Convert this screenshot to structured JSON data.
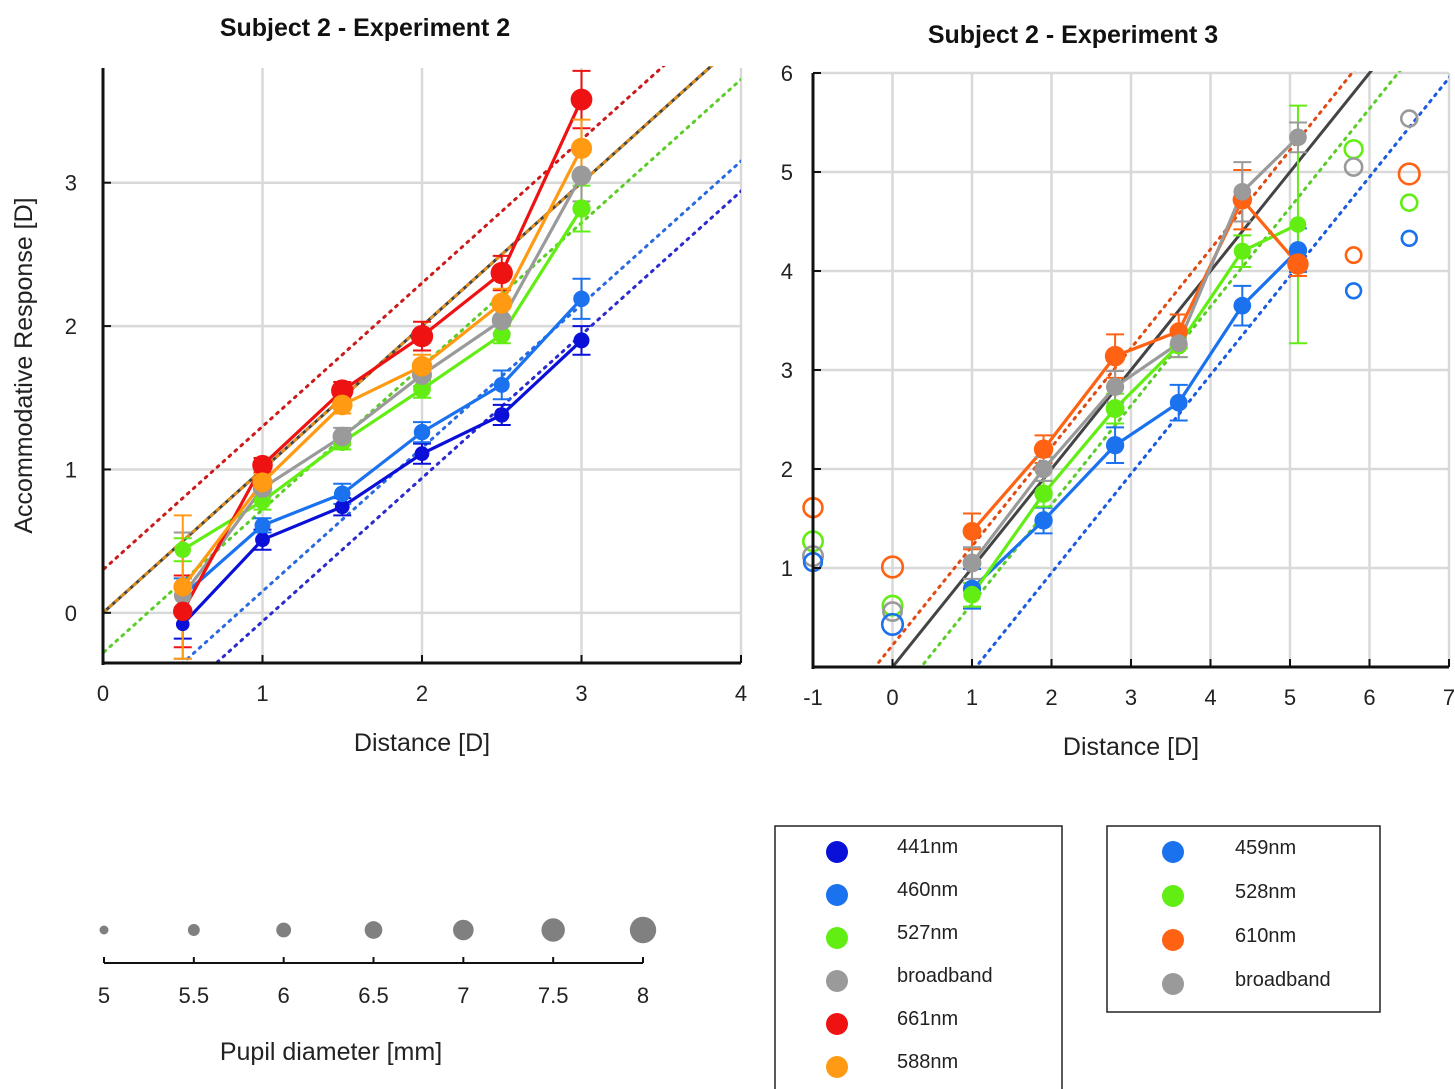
{
  "chart_data": [
    {
      "type": "line",
      "title": "Subject 2 - Experiment 2",
      "xlabel": "Distance [D]",
      "ylabel": "Accommodative Response [D]",
      "xlim": [
        0,
        4
      ],
      "ylim": [
        -0.35,
        3.8
      ],
      "xticks": [
        "0",
        "1",
        "2",
        "3",
        "4"
      ],
      "yticks": [
        "0",
        "1",
        "2",
        "3"
      ],
      "grid": true,
      "reference_lines": [
        {
          "style": "solid",
          "color": "#444444",
          "slope": 1,
          "intercept": 0
        },
        {
          "style": "dotted",
          "color": "#cc1a1a",
          "slope": 1,
          "intercept": 0.3
        },
        {
          "style": "dotted",
          "color": "#e0901a",
          "slope": 1,
          "intercept": 0.0
        },
        {
          "style": "dotted",
          "color": "#5ccc2a",
          "slope": 1,
          "intercept": -0.28
        },
        {
          "style": "dotted",
          "color": "#2a6ae0",
          "slope": 1,
          "intercept": -0.85
        },
        {
          "style": "dotted",
          "color": "#2a2ad0",
          "slope": 1,
          "intercept": -1.06
        }
      ],
      "series": [
        {
          "name": "441nm",
          "color": "#0a10d8",
          "x": [
            0.5,
            1,
            1.5,
            2,
            2.5,
            3
          ],
          "y": [
            -0.08,
            0.51,
            0.74,
            1.11,
            1.38,
            1.9
          ],
          "err": [
            0.1,
            0.07,
            0.06,
            0.07,
            0.07,
            0.1
          ],
          "pupil": [
            5.8,
            6.0,
            6.0,
            6.0,
            6.1,
            6.2
          ]
        },
        {
          "name": "460nm",
          "color": "#1a72ee",
          "x": [
            0.5,
            1,
            1.5,
            2,
            2.5,
            3
          ],
          "y": [
            0.12,
            0.61,
            0.83,
            1.26,
            1.59,
            2.19
          ],
          "err": [
            0.12,
            0.05,
            0.07,
            0.07,
            0.1,
            0.14
          ],
          "pupil": [
            6.0,
            6.2,
            6.3,
            6.3,
            6.2,
            6.3
          ]
        },
        {
          "name": "527nm",
          "color": "#62ee12",
          "x": [
            0.5,
            1,
            1.5,
            2,
            2.5,
            3
          ],
          "y": [
            0.44,
            0.78,
            1.19,
            1.56,
            1.94,
            2.82
          ],
          "err": [
            0.08,
            0.06,
            0.05,
            0.06,
            0.06,
            0.16
          ],
          "pupil": [
            6.3,
            6.4,
            6.5,
            6.5,
            6.5,
            6.6
          ]
        },
        {
          "name": "broadband",
          "color": "#9a9a9a",
          "x": [
            0.5,
            1,
            1.5,
            2,
            2.5,
            3
          ],
          "y": [
            0.12,
            0.87,
            1.23,
            1.66,
            2.04,
            3.05
          ],
          "err": [
            0.44,
            0.06,
            0.06,
            0.08,
            0.09,
            0.18
          ],
          "pupil": [
            6.5,
            6.8,
            6.8,
            6.9,
            6.9,
            6.9
          ]
        },
        {
          "name": "661nm",
          "color": "#ee1212",
          "x": [
            0.5,
            1,
            1.5,
            2,
            2.5,
            3
          ],
          "y": [
            0.01,
            1.03,
            1.55,
            1.93,
            2.37,
            3.58
          ],
          "err": [
            0.25,
            0.05,
            0.06,
            0.1,
            0.12,
            0.2
          ],
          "pupil": [
            6.8,
            7.0,
            7.3,
            7.3,
            7.3,
            7.2
          ]
        },
        {
          "name": "588nm",
          "color": "#ff9a12",
          "x": [
            0.5,
            1,
            1.5,
            2,
            2.5,
            3
          ],
          "y": [
            0.18,
            0.91,
            1.45,
            1.72,
            2.16,
            3.24
          ],
          "err": [
            0.5,
            0.06,
            0.06,
            0.08,
            0.1,
            0.2
          ],
          "pupil": [
            6.7,
            6.9,
            7.0,
            7.0,
            7.1,
            7.1
          ]
        }
      ]
    },
    {
      "type": "line",
      "title": "Subject 2 - Experiment 3",
      "xlabel": "Distance [D]",
      "ylabel": "",
      "xlim": [
        -1,
        7
      ],
      "ylim": [
        0,
        6
      ],
      "xticks": [
        "-1",
        "0",
        "1",
        "2",
        "3",
        "4",
        "5",
        "6",
        "7"
      ],
      "yticks": [
        "1",
        "2",
        "3",
        "4",
        "5",
        "6"
      ],
      "grid": true,
      "reference_lines": [
        {
          "style": "solid",
          "color": "#444444",
          "slope": 1,
          "intercept": 0
        },
        {
          "style": "dotted",
          "color": "#e04a14",
          "slope": 1,
          "intercept": 0.22
        },
        {
          "style": "dotted",
          "color": "#5ccc2a",
          "slope": 1,
          "intercept": -0.36
        },
        {
          "style": "dotted",
          "color": "#1a5ae0",
          "slope": 1,
          "intercept": -1.05
        }
      ],
      "series": [
        {
          "name": "459nm",
          "color": "#1a72ee",
          "x": [
            1,
            1.9,
            2.8,
            3.6,
            4.4,
            5.1
          ],
          "y": [
            0.79,
            1.48,
            2.24,
            2.67,
            3.65,
            4.21
          ],
          "err": [
            0.2,
            0.13,
            0.18,
            0.18,
            0.2,
            0.22
          ],
          "pupil": [
            6.6,
            6.6,
            6.6,
            6.5,
            6.5,
            6.6
          ]
        },
        {
          "name": "528nm",
          "color": "#62ee12",
          "x": [
            1,
            1.9,
            2.8,
            3.6,
            4.4,
            5.1
          ],
          "y": [
            0.73,
            1.75,
            2.61,
            3.25,
            4.2,
            4.47
          ],
          "err": [
            0.12,
            0.13,
            0.15,
            0.12,
            0.16,
            1.2
          ],
          "pupil": [
            6.5,
            6.6,
            6.7,
            6.6,
            6.4,
            6.3
          ]
        },
        {
          "name": "610nm",
          "color": "#ff6212",
          "x": [
            1,
            1.9,
            2.8,
            3.6,
            4.4,
            5.1
          ],
          "y": [
            1.37,
            2.2,
            3.14,
            3.39,
            4.72,
            4.07
          ],
          "err": [
            0.18,
            0.14,
            0.22,
            0.17,
            0.3,
            0.12
          ],
          "pupil": [
            6.7,
            6.8,
            7.0,
            6.6,
            6.8,
            6.4
          ]
        },
        {
          "name": "broadband",
          "color": "#9a9a9a",
          "x": [
            1,
            1.9,
            2.8,
            3.6,
            4.4,
            5.1
          ],
          "y": [
            1.05,
            2.0,
            2.83,
            3.27,
            4.8,
            5.35
          ],
          "err": [
            0.16,
            0.12,
            0.16,
            0.14,
            0.3,
            0.15
          ],
          "pupil": [
            6.7,
            6.6,
            6.6,
            6.5,
            6.5,
            6.5
          ]
        }
      ],
      "open_markers": [
        {
          "series": "610nm",
          "color": "#ff6212",
          "x": [
            -1,
            0,
            5.1,
            5.8,
            6.5
          ],
          "y": [
            1.61,
            1.01,
            4.07,
            4.16,
            4.98
          ],
          "pupil": [
            6.7,
            7.0,
            6.7,
            6.1,
            7.0
          ]
        },
        {
          "series": "528nm",
          "color": "#62ee12",
          "x": [
            -1,
            0,
            5.8,
            6.5
          ],
          "y": [
            1.27,
            0.62,
            5.23,
            4.69
          ],
          "pupil": [
            6.8,
            6.8,
            6.5,
            6.2
          ]
        },
        {
          "series": "broadband",
          "color": "#9a9a9a",
          "x": [
            -1,
            0,
            5.8,
            6.5
          ],
          "y": [
            1.12,
            0.56,
            5.05,
            5.54
          ],
          "pupil": [
            6.8,
            6.6,
            6.4,
            6.2
          ]
        },
        {
          "series": "459nm",
          "color": "#1a72ee",
          "x": [
            -1,
            0,
            5.8,
            6.5
          ],
          "y": [
            1.06,
            0.43,
            3.8,
            4.33
          ],
          "pupil": [
            6.5,
            7.0,
            6.0,
            6.0
          ]
        }
      ]
    }
  ],
  "pupil_scale": {
    "xlabel": "Pupil diameter [mm]",
    "ticks": [
      "5",
      "5.5",
      "6",
      "6.5",
      "7",
      "7.5",
      "8"
    ],
    "values": [
      5,
      5.5,
      6,
      6.5,
      7,
      7.5,
      8
    ],
    "color": "#808080"
  },
  "legend_left": [
    {
      "label": "441nm",
      "color": "#0a10d8"
    },
    {
      "label": "460nm",
      "color": "#1a72ee"
    },
    {
      "label": "527nm",
      "color": "#62ee12"
    },
    {
      "label": "broadband",
      "color": "#9a9a9a"
    },
    {
      "label": "661nm",
      "color": "#ee1212"
    },
    {
      "label": "588nm",
      "color": "#ff9a12"
    }
  ],
  "legend_right": [
    {
      "label": "459nm",
      "color": "#1a72ee"
    },
    {
      "label": "528nm",
      "color": "#62ee12"
    },
    {
      "label": "610nm",
      "color": "#ff6212"
    },
    {
      "label": "broadband",
      "color": "#9a9a9a"
    }
  ]
}
